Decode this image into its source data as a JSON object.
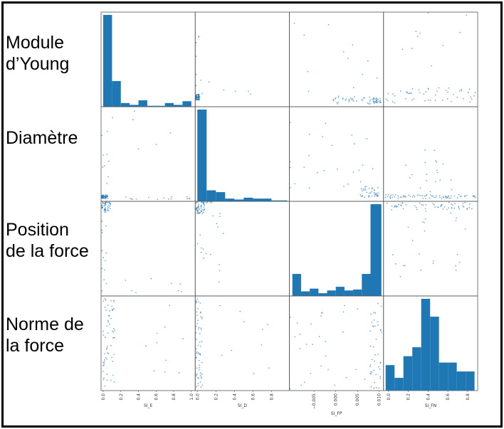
{
  "chart_data": {
    "type": "scatter-matrix",
    "variables": [
      "SI_E",
      "SI_D",
      "SI_FP",
      "SI_FN"
    ],
    "row_labels": [
      "Module\nd’Young",
      "Diamètre",
      "Position\nde la force",
      "Norme de\nla force"
    ],
    "colors": {
      "marks": "#1f77b4",
      "frame": "#000000",
      "axes": "#555555"
    },
    "grid": false,
    "x_ticks": [
      {
        "values": [
          0.0,
          0.2,
          0.4,
          0.6,
          0.8,
          1.0
        ],
        "labels": [
          "0.0",
          "0.2",
          "0.4",
          "0.6",
          "0.8",
          "1.0"
        ],
        "range": [
          0.0,
          1.02
        ]
      },
      {
        "values": [
          0.0,
          0.2,
          0.4,
          0.6,
          0.8
        ],
        "labels": [
          "0.0",
          "0.2",
          "0.4",
          "0.6",
          "0.8"
        ],
        "range": [
          0.0,
          0.97
        ]
      },
      {
        "values": [
          -0.005,
          0.0,
          0.005,
          0.01
        ],
        "labels": [
          "−0.005",
          "0.000",
          "0.005",
          "0.010"
        ],
        "range": [
          -0.0102,
          0.0105
        ]
      },
      {
        "values": [
          0.0,
          0.2,
          0.4,
          0.6,
          0.8
        ],
        "labels": [
          "0.0",
          "0.2",
          "0.4",
          "0.6",
          "0.8"
        ],
        "range": [
          -0.03,
          0.88
        ]
      }
    ],
    "histograms": [
      {
        "variable": "SI_E",
        "bin_edges": [
          0.0,
          0.1,
          0.2,
          0.3,
          0.4,
          0.5,
          0.6,
          0.7,
          0.8,
          0.9,
          1.0
        ],
        "counts": [
          100,
          28,
          4,
          2,
          7,
          1,
          1,
          4,
          2,
          6
        ]
      },
      {
        "variable": "SI_D",
        "bin_edges": [
          0.0,
          0.1,
          0.2,
          0.3,
          0.4,
          0.5,
          0.6,
          0.7,
          0.8,
          0.9,
          0.97
        ],
        "counts": [
          100,
          12,
          10,
          3,
          2,
          4,
          3,
          3,
          1,
          1
        ]
      },
      {
        "variable": "SI_FP",
        "bin_edges": [
          -0.01,
          -0.008,
          -0.006,
          -0.004,
          -0.002,
          0.0,
          0.002,
          0.004,
          0.006,
          0.008,
          0.0105
        ],
        "counts": [
          24,
          5,
          8,
          3,
          6,
          10,
          6,
          7,
          24,
          100
        ]
      },
      {
        "variable": "SI_FN",
        "bin_edges": [
          -0.03,
          0.06,
          0.15,
          0.24,
          0.33,
          0.42,
          0.51,
          0.6,
          0.69,
          0.78,
          0.87
        ],
        "counts": [
          20,
          10,
          27,
          34,
          72,
          58,
          22,
          22,
          15,
          15
        ]
      }
    ]
  }
}
